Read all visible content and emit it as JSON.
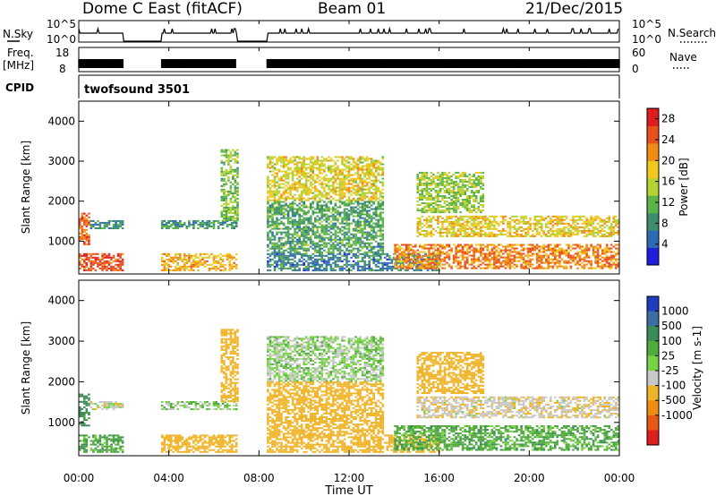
{
  "header": {
    "station": "Dome C East (fitACF)",
    "beam": "Beam 01",
    "date": "21/Dec/2015"
  },
  "strip_labels": {
    "nsky": "N.Sky",
    "nsearch": "N.Search",
    "freq_line1": "Freq.",
    "freq_line2": "[MHz]",
    "nave": "Nave",
    "cpid": "CPID",
    "cpid_value": "twofsound 3501",
    "noise_ticks_left": [
      "10^5",
      "10^0"
    ],
    "noise_ticks_right": [
      "10^5",
      "10^0"
    ],
    "freq_ticks": [
      "18",
      "8"
    ],
    "nave_ticks": [
      "60",
      "0"
    ]
  },
  "chart_data": [
    {
      "type": "heatmap",
      "name": "power",
      "ylabel": "Slant Range [km]",
      "y_ticks": [
        "1000",
        "2000",
        "3000",
        "4000"
      ],
      "ylim": [
        180,
        4500
      ],
      "x_ticks": [
        "00:00",
        "04:00",
        "08:00",
        "12:00",
        "16:00",
        "20:00",
        "00:00"
      ],
      "xlim_hours": [
        0,
        24
      ],
      "colorbar": {
        "label": "Power [dB]",
        "ticks": [
          "4",
          "8",
          "12",
          "16",
          "20",
          "24",
          "28"
        ],
        "range": [
          0,
          30
        ],
        "colors": [
          "#1e1edc",
          "#2e6ab4",
          "#3e8e6e",
          "#5ab44a",
          "#b4d232",
          "#f0c81e",
          "#f08c14",
          "#e8501e",
          "#dc1e1e"
        ]
      },
      "data_gaps_hours": [
        [
          2.0,
          3.65
        ],
        [
          7.0,
          8.35
        ]
      ],
      "echo_regions": [
        {
          "t0": 0.0,
          "t1": 2.0,
          "r0": 250,
          "r1": 700,
          "level": 25
        },
        {
          "t0": 0.0,
          "t1": 0.5,
          "r0": 900,
          "r1": 1700,
          "level": 24
        },
        {
          "t0": 0.5,
          "t1": 2.0,
          "r0": 1300,
          "r1": 1500,
          "level": 8
        },
        {
          "t0": 3.65,
          "t1": 7.0,
          "r0": 250,
          "r1": 700,
          "level": 20
        },
        {
          "t0": 3.65,
          "t1": 7.0,
          "r0": 1300,
          "r1": 1500,
          "level": 9
        },
        {
          "t0": 6.3,
          "t1": 7.0,
          "r0": 1500,
          "r1": 3300,
          "level": 13
        },
        {
          "t0": 8.35,
          "t1": 13.5,
          "r0": 2000,
          "r1": 3100,
          "level": 17
        },
        {
          "t0": 8.35,
          "t1": 13.5,
          "r0": 700,
          "r1": 2000,
          "level": 10
        },
        {
          "t0": 8.35,
          "t1": 16.0,
          "r0": 250,
          "r1": 700,
          "level": 7
        },
        {
          "t0": 14.0,
          "t1": 24.0,
          "r0": 300,
          "r1": 900,
          "level": 22
        },
        {
          "t0": 15.0,
          "t1": 24.0,
          "r0": 1100,
          "r1": 1600,
          "level": 18
        },
        {
          "t0": 15.0,
          "t1": 18.0,
          "r0": 1700,
          "r1": 2700,
          "level": 14
        }
      ]
    },
    {
      "type": "heatmap",
      "name": "velocity",
      "ylabel": "Slant Range [km]",
      "y_ticks": [
        "1000",
        "2000",
        "3000",
        "4000"
      ],
      "ylim": [
        180,
        4500
      ],
      "x_ticks": [
        "00:00",
        "04:00",
        "08:00",
        "12:00",
        "16:00",
        "20:00",
        "00:00"
      ],
      "xlabel": "Time UT",
      "xlim_hours": [
        0,
        24
      ],
      "colorbar": {
        "label": "Velocity [m s-1]",
        "ticks": [
          "1000",
          "500",
          "100",
          "25",
          "-25",
          "-100",
          "-500",
          "-1000"
        ],
        "colors": [
          "#1e3cbe",
          "#3c6ea0",
          "#3c8c5a",
          "#50aa3c",
          "#78d246",
          "#c8c8c8",
          "#f0b428",
          "#f08c14",
          "#e85a14",
          "#dc1e1e"
        ]
      },
      "data_gaps_hours": [
        [
          2.0,
          3.65
        ],
        [
          7.0,
          8.35
        ]
      ],
      "echo_regions": [
        {
          "t0": 0.0,
          "t1": 2.0,
          "r0": 250,
          "r1": 700,
          "level": 70
        },
        {
          "t0": 0.0,
          "t1": 0.5,
          "r0": 900,
          "r1": 1700,
          "level": 150
        },
        {
          "t0": 0.5,
          "t1": 2.0,
          "r0": 1300,
          "r1": 1500,
          "level": -60
        },
        {
          "t0": 3.65,
          "t1": 7.0,
          "r0": 250,
          "r1": 700,
          "level": -300
        },
        {
          "t0": 3.65,
          "t1": 7.0,
          "r0": 1300,
          "r1": 1500,
          "level": 0
        },
        {
          "t0": 6.3,
          "t1": 7.0,
          "r0": 1500,
          "r1": 3300,
          "level": -250
        },
        {
          "t0": 8.35,
          "t1": 13.5,
          "r0": 2000,
          "r1": 3100,
          "level": -10
        },
        {
          "t0": 8.35,
          "t1": 13.5,
          "r0": 700,
          "r1": 2000,
          "level": -300
        },
        {
          "t0": 8.35,
          "t1": 16.0,
          "r0": 250,
          "r1": 700,
          "level": -200
        },
        {
          "t0": 14.0,
          "t1": 24.0,
          "r0": 300,
          "r1": 900,
          "level": 60
        },
        {
          "t0": 15.0,
          "t1": 24.0,
          "r0": 1100,
          "r1": 1600,
          "level": -80
        },
        {
          "t0": 15.0,
          "t1": 18.0,
          "r0": 1700,
          "r1": 2700,
          "level": -400
        }
      ]
    }
  ]
}
